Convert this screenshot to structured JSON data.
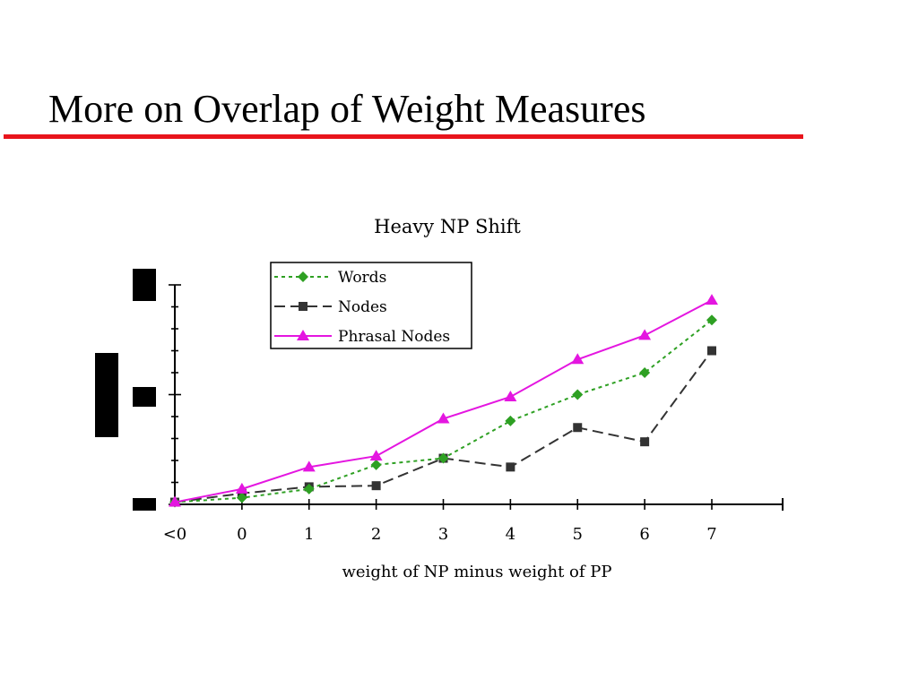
{
  "slide": {
    "title": "More on Overlap of Weight Measures",
    "rule_color": "#e8141c"
  },
  "chart_data": {
    "type": "line",
    "title": "Heavy NP Shift",
    "xlabel": "weight of NP minus weight of PP",
    "ylabel": "",
    "categories": [
      "<0",
      "0",
      "1",
      "2",
      "3",
      "4",
      "5",
      "6",
      "7"
    ],
    "ylim": [
      0,
      1
    ],
    "y_tick_labels_redacted": true,
    "legend_position": "top-left",
    "grid": false,
    "series": [
      {
        "name": "Words",
        "color": "#2ea023",
        "line_style": "dotted",
        "marker": "diamond",
        "values": [
          0.01,
          0.03,
          0.07,
          0.18,
          0.21,
          0.38,
          0.5,
          0.6,
          0.84
        ]
      },
      {
        "name": "Nodes",
        "color": "#333333",
        "line_style": "dashed",
        "marker": "square",
        "values": [
          0.01,
          0.05,
          0.08,
          0.085,
          0.21,
          0.17,
          0.35,
          0.285,
          0.7
        ]
      },
      {
        "name": "Phrasal Nodes",
        "color": "#e416e0",
        "line_style": "solid",
        "marker": "triangle",
        "values": [
          0.01,
          0.07,
          0.17,
          0.22,
          0.39,
          0.49,
          0.66,
          0.77,
          0.93
        ]
      }
    ]
  }
}
